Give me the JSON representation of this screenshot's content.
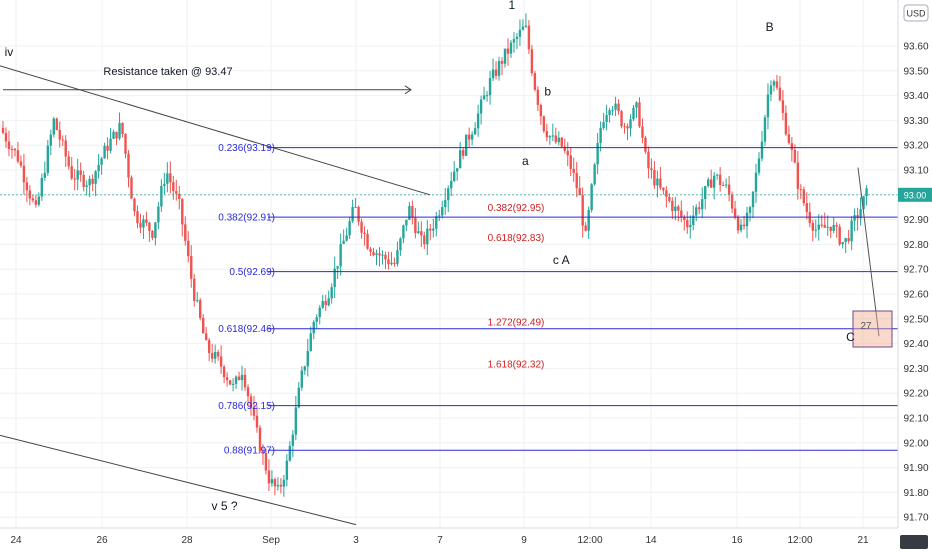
{
  "chart_data": {
    "type": "candlestick",
    "title": "",
    "ylabel": "",
    "currency_label": "USD",
    "ylim": [
      91.65,
      93.75
    ],
    "ytick_values": [
      91.7,
      91.8,
      91.9,
      92.0,
      92.1,
      92.2,
      92.3,
      92.4,
      92.5,
      92.6,
      92.7,
      92.8,
      92.9,
      93.0,
      93.1,
      93.2,
      93.3,
      93.4,
      93.5,
      93.6
    ],
    "ytick_labels": [
      "91.70",
      "91.80",
      "91.90",
      "92.00",
      "92.10",
      "92.20",
      "92.30",
      "92.40",
      "92.50",
      "92.60",
      "92.70",
      "92.80",
      "92.90",
      "93.00",
      "93.10",
      "93.20",
      "93.30",
      "93.40",
      "93.50",
      "93.60"
    ],
    "xtick_labels": [
      "24",
      "26",
      "28",
      "Sep",
      "3",
      "7",
      "9",
      "12:00",
      "14",
      "16",
      "12:00",
      "21"
    ],
    "last_price": 93.0,
    "last_price_label": "93.00",
    "bull_color": "#26a69a",
    "bear_color": "#ef5350",
    "fib_color": "#2a2ad8",
    "ext_color": "#d02020",
    "fib_levels": [
      {
        "label": "0.236(93.19)",
        "value": 93.19
      },
      {
        "label": "0.382(92.91)",
        "value": 92.91
      },
      {
        "label": "0.5(92.69)",
        "value": 92.69
      },
      {
        "label": "0.618(92.46)",
        "value": 92.46
      },
      {
        "label": "0.786(92.15)",
        "value": 92.15
      },
      {
        "label": "0.88(91.97)",
        "value": 91.97
      }
    ],
    "extension_labels": [
      {
        "label": "0.382(92.95)",
        "value": 92.95
      },
      {
        "label": "0.618(92.83)",
        "value": 92.83
      },
      {
        "label": "1.272(92.49)",
        "value": 92.49
      },
      {
        "label": "1.618(92.32)",
        "value": 92.32
      }
    ],
    "wave_labels": [
      {
        "label": "iv",
        "t": 0.01,
        "price": 93.56
      },
      {
        "label": "1",
        "t": 0.57,
        "price": 93.75
      },
      {
        "label": "b",
        "t": 0.61,
        "price": 93.4
      },
      {
        "label": "a",
        "t": 0.585,
        "price": 93.12
      },
      {
        "label": "c A",
        "t": 0.625,
        "price": 92.72
      },
      {
        "label": "B",
        "t": 0.857,
        "price": 93.66
      },
      {
        "label": "C",
        "t": 0.947,
        "price": 92.41
      },
      {
        "label": "v 5 ?",
        "t": 0.25,
        "price": 91.73
      }
    ],
    "annotation": {
      "text": "Resistance taken @ 93.47",
      "price": 93.5
    },
    "target_box_label": "27",
    "price_path": [
      [
        0.0,
        93.27
      ],
      [
        0.02,
        93.15
      ],
      [
        0.04,
        92.93
      ],
      [
        0.06,
        93.3
      ],
      [
        0.08,
        93.08
      ],
      [
        0.1,
        93.05
      ],
      [
        0.12,
        93.2
      ],
      [
        0.135,
        93.28
      ],
      [
        0.15,
        92.92
      ],
      [
        0.17,
        92.85
      ],
      [
        0.185,
        93.1
      ],
      [
        0.2,
        92.95
      ],
      [
        0.215,
        92.62
      ],
      [
        0.23,
        92.38
      ],
      [
        0.245,
        92.32
      ],
      [
        0.26,
        92.22
      ],
      [
        0.27,
        92.3
      ],
      [
        0.285,
        92.05
      ],
      [
        0.3,
        91.85
      ],
      [
        0.31,
        91.8
      ],
      [
        0.32,
        91.92
      ],
      [
        0.335,
        92.25
      ],
      [
        0.35,
        92.5
      ],
      [
        0.365,
        92.6
      ],
      [
        0.38,
        92.78
      ],
      [
        0.395,
        92.95
      ],
      [
        0.41,
        92.8
      ],
      [
        0.425,
        92.75
      ],
      [
        0.44,
        92.72
      ],
      [
        0.455,
        92.95
      ],
      [
        0.47,
        92.8
      ],
      [
        0.485,
        92.9
      ],
      [
        0.5,
        93.05
      ],
      [
        0.515,
        93.18
      ],
      [
        0.53,
        93.3
      ],
      [
        0.545,
        93.45
      ],
      [
        0.56,
        93.55
      ],
      [
        0.575,
        93.63
      ],
      [
        0.585,
        93.68
      ],
      [
        0.595,
        93.45
      ],
      [
        0.605,
        93.28
      ],
      [
        0.615,
        93.22
      ],
      [
        0.625,
        93.2
      ],
      [
        0.635,
        93.12
      ],
      [
        0.645,
        93.0
      ],
      [
        0.652,
        92.82
      ],
      [
        0.66,
        93.05
      ],
      [
        0.67,
        93.3
      ],
      [
        0.68,
        93.38
      ],
      [
        0.695,
        93.28
      ],
      [
        0.71,
        93.35
      ],
      [
        0.72,
        93.12
      ],
      [
        0.735,
        93.02
      ],
      [
        0.75,
        92.95
      ],
      [
        0.765,
        92.88
      ],
      [
        0.78,
        92.97
      ],
      [
        0.795,
        93.08
      ],
      [
        0.81,
        93.02
      ],
      [
        0.825,
        92.85
      ],
      [
        0.835,
        92.92
      ],
      [
        0.845,
        93.15
      ],
      [
        0.855,
        93.4
      ],
      [
        0.86,
        93.5
      ],
      [
        0.87,
        93.35
      ],
      [
        0.88,
        93.2
      ],
      [
        0.89,
        93.02
      ],
      [
        0.9,
        92.92
      ],
      [
        0.91,
        92.85
      ],
      [
        0.925,
        92.88
      ],
      [
        0.94,
        92.8
      ],
      [
        0.955,
        92.92
      ],
      [
        0.965,
        93.0
      ]
    ]
  }
}
